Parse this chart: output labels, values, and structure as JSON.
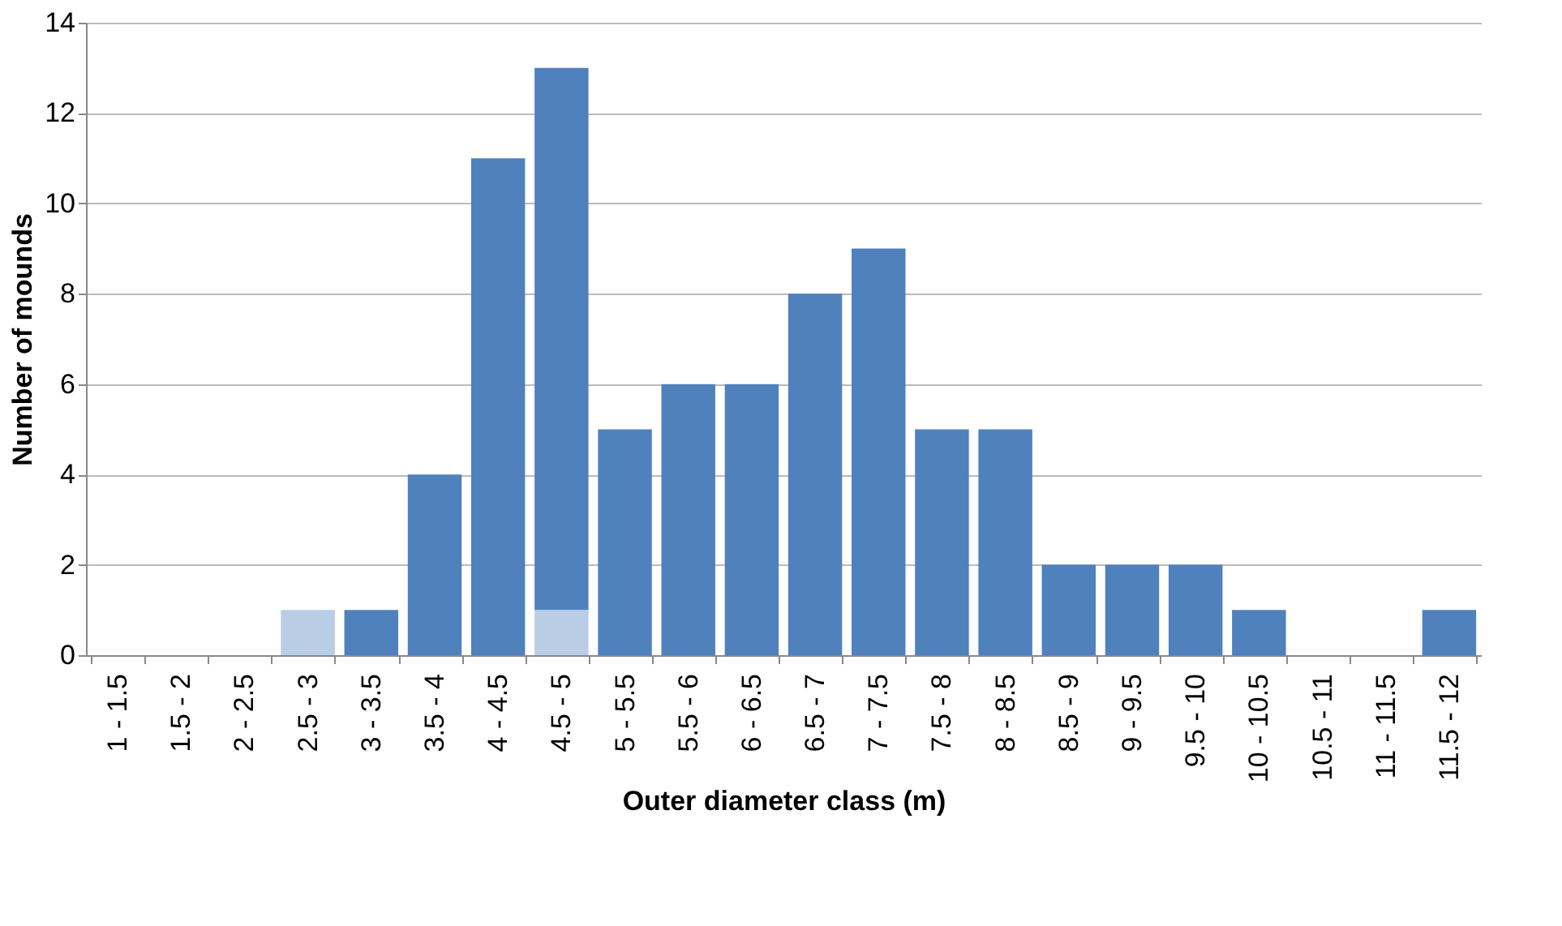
{
  "chart_data": {
    "type": "bar",
    "stacked": true,
    "xlabel": "Outer diameter class (m)",
    "ylabel": "Number of mounds",
    "categories": [
      "1 - 1.5",
      "1.5 - 2",
      "2 - 2.5",
      "2.5 - 3",
      "3 - 3.5",
      "3.5 - 4",
      "4 - 4.5",
      "4.5 - 5",
      "5 - 5.5",
      "5.5 - 6",
      "6 - 6.5",
      "6.5 - 7",
      "7 - 7.5",
      "7.5 - 8",
      "8 - 8.5",
      "8.5 - 9",
      "9 - 9.5",
      "9.5 - 10",
      "10 - 10.5",
      "10.5 - 11",
      "11 - 11.5",
      "11.5 - 12"
    ],
    "series": [
      {
        "color": "#b9cde5",
        "values": [
          null,
          null,
          null,
          1,
          null,
          null,
          null,
          1,
          null,
          null,
          null,
          null,
          null,
          null,
          null,
          null,
          null,
          null,
          null,
          null,
          null,
          null
        ]
      },
      {
        "color": "#4f81bd",
        "values": [
          0,
          0,
          0,
          0,
          1,
          4,
          11,
          12,
          5,
          6,
          6,
          8,
          9,
          5,
          5,
          2,
          2,
          2,
          1,
          0,
          0,
          1
        ]
      }
    ],
    "ylim": [
      0,
      14
    ],
    "yticks": [
      0,
      2,
      4,
      6,
      8,
      10,
      12,
      14
    ],
    "grid": "y",
    "legend": false
  }
}
